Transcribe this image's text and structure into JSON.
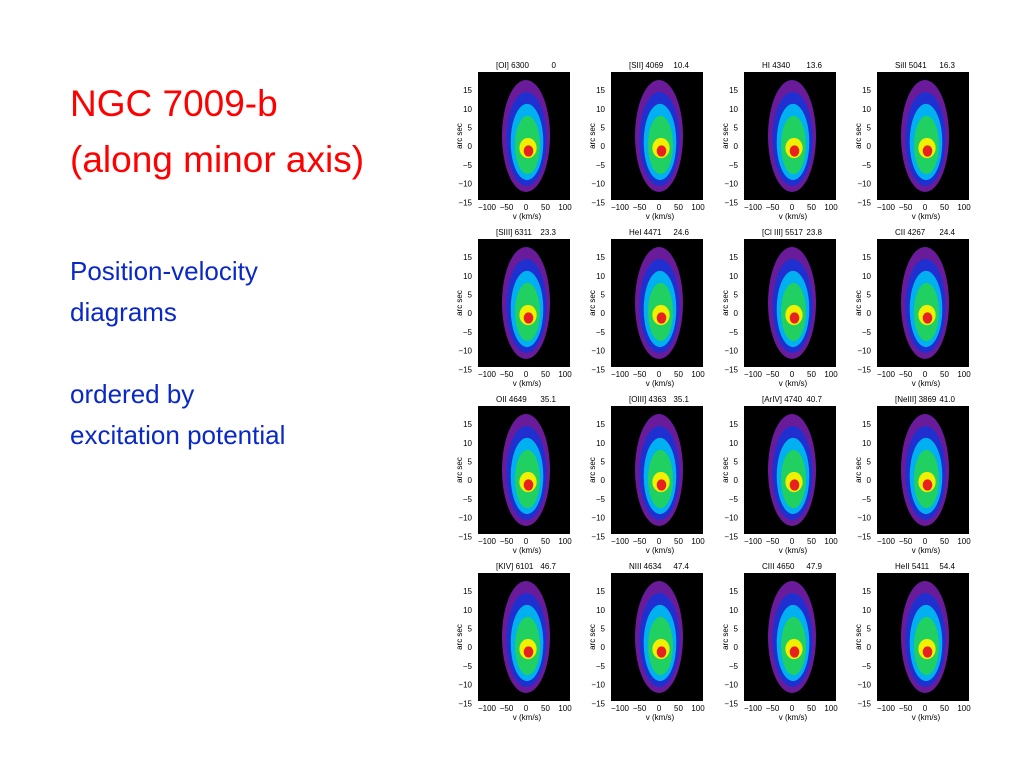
{
  "title": [
    "NGC 7009-b",
    "(along minor axis)"
  ],
  "notes": [
    "Position-velocity",
    "diagrams",
    "ordered by",
    "excitation potential"
  ],
  "axis": {
    "y_label": "arc sec",
    "x_label": "v (km/s)",
    "yticks": [
      "15",
      "10",
      "5",
      "0",
      "−5",
      "−10",
      "−15"
    ],
    "xticks": [
      "−100",
      "−50",
      "0",
      "50",
      "100"
    ]
  },
  "panels": [
    {
      "line": "[OI] 6300",
      "potential": "0"
    },
    {
      "line": "[SII] 4069",
      "potential": "10.4"
    },
    {
      "line": "HI 4340",
      "potential": "13.6"
    },
    {
      "line": "SiII 5041",
      "potential": "16.3"
    },
    {
      "line": "[SIII] 6311",
      "potential": "23.3"
    },
    {
      "line": "HeI 4471",
      "potential": "24.6"
    },
    {
      "line": "[Cl III] 5517",
      "potential": "23.8"
    },
    {
      "line": "CII 4267",
      "potential": "24.4"
    },
    {
      "line": "OII 4649",
      "potential": "35.1"
    },
    {
      "line": "[OIII] 4363",
      "potential": "35.1"
    },
    {
      "line": "[ArIV] 4740",
      "potential": "40.7"
    },
    {
      "line": "[NeIII] 3869",
      "potential": "41.0"
    },
    {
      "line": "[KIV] 6101",
      "potential": "46.7"
    },
    {
      "line": "NIII 4634",
      "potential": "47.4"
    },
    {
      "line": "CIII 4650",
      "potential": "47.9"
    },
    {
      "line": "HeII 5411",
      "potential": "54.4"
    }
  ]
}
